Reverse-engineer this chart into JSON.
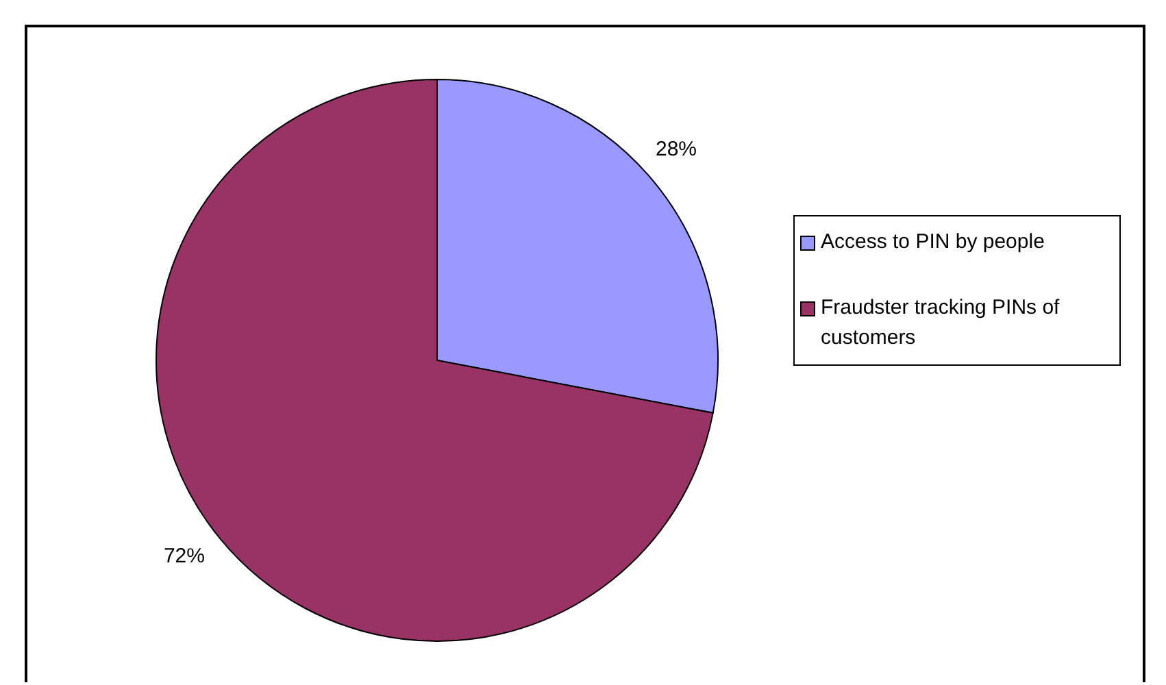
{
  "chart_data": {
    "type": "pie",
    "categories": [
      "Access to PIN by people",
      "Fraudster tracking PINs of customers"
    ],
    "values": [
      28,
      72
    ],
    "value_labels": [
      "28%",
      "72%"
    ],
    "colors": [
      "#9999ff",
      "#993366"
    ],
    "legend": "right"
  }
}
